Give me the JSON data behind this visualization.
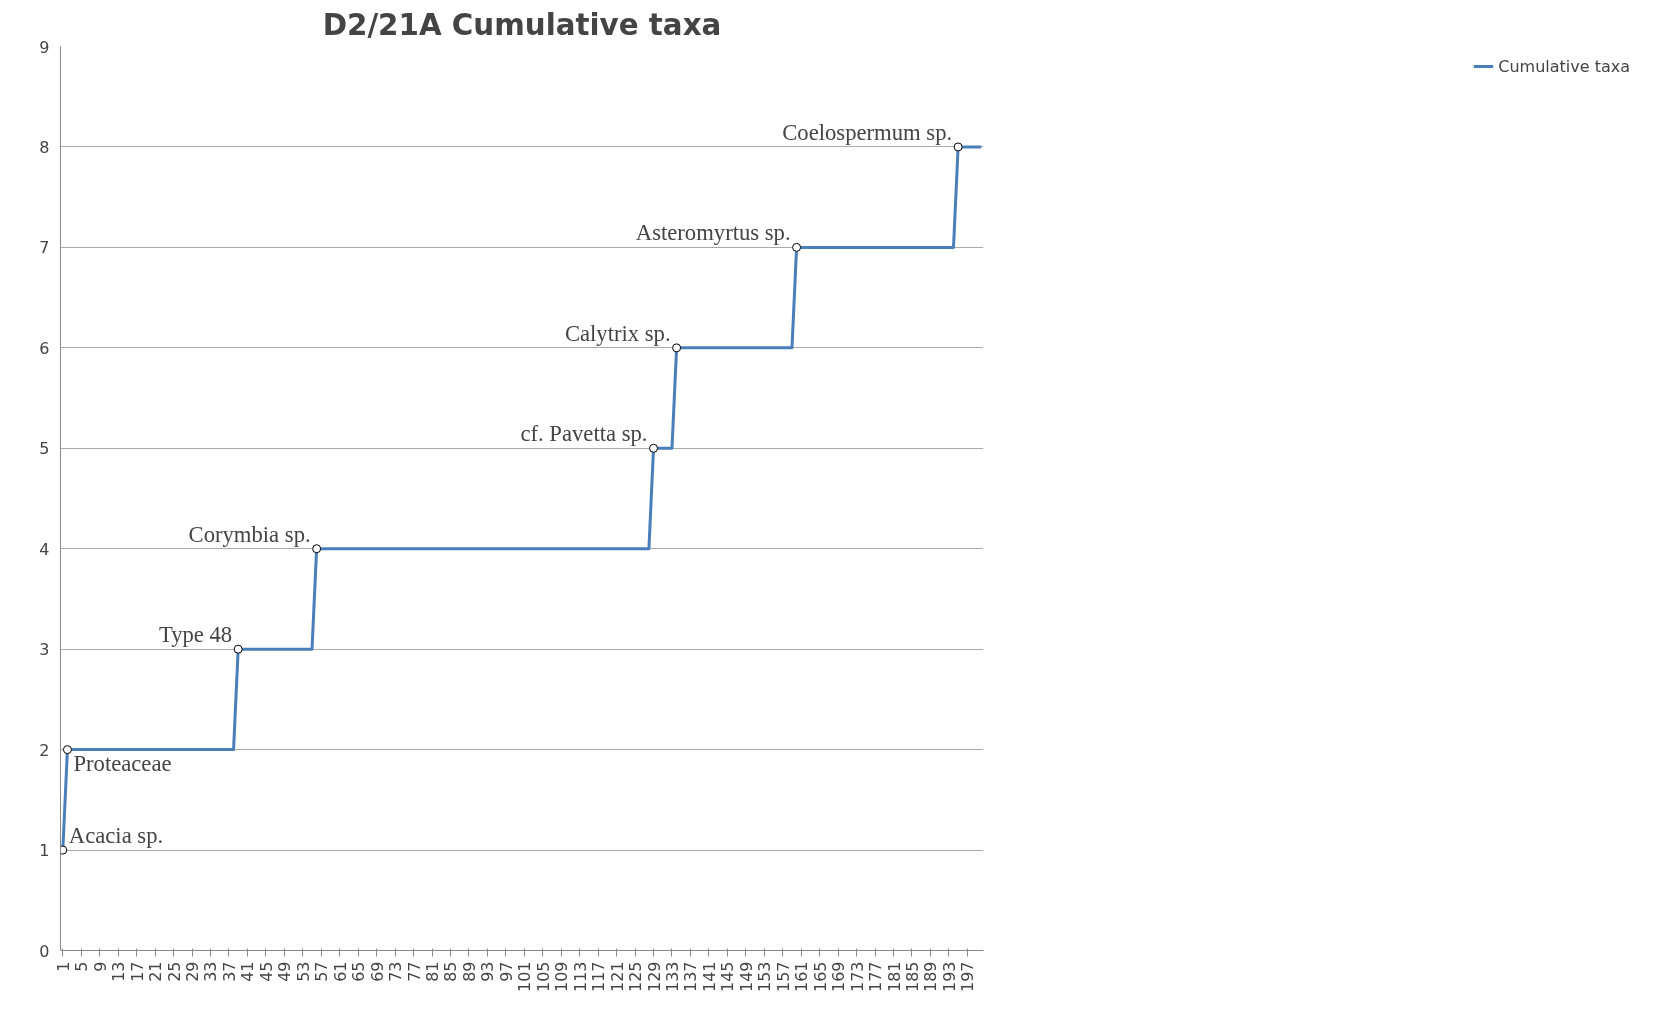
{
  "chart_data": {
    "type": "line",
    "title": "D2/21A Cumulative taxa",
    "xlim": [
      0.5,
      200.5
    ],
    "xticks": [
      1,
      5,
      9,
      13,
      17,
      21,
      25,
      29,
      33,
      37,
      41,
      45,
      49,
      53,
      57,
      61,
      65,
      69,
      73,
      77,
      81,
      85,
      89,
      93,
      97,
      101,
      105,
      109,
      113,
      117,
      121,
      125,
      129,
      133,
      137,
      141,
      145,
      149,
      153,
      157,
      161,
      165,
      169,
      173,
      177,
      181,
      185,
      189,
      193,
      197
    ],
    "ylim": [
      0,
      9
    ],
    "yticks": [
      0,
      1,
      2,
      3,
      4,
      5,
      6,
      7,
      8,
      9
    ],
    "grid": "y",
    "legend": "right",
    "series": [
      {
        "name": "Cumulative taxa",
        "color": "#4a7ebb",
        "x": [
          1,
          2,
          38,
          39,
          55,
          56,
          128,
          129,
          133,
          134,
          159,
          160,
          194,
          195,
          200
        ],
        "values": [
          1,
          2,
          2,
          3,
          3,
          4,
          4,
          5,
          5,
          6,
          6,
          7,
          7,
          8,
          8
        ]
      }
    ],
    "annotations": [
      {
        "text": "Acacia sp.",
        "x": 1,
        "y": 1
      },
      {
        "text": "Proteaceae",
        "x": 2,
        "y": 2
      },
      {
        "text": "Type 48",
        "x": 39,
        "y": 3
      },
      {
        "text": "Corymbia sp.",
        "x": 56,
        "y": 4
      },
      {
        "text": "cf. Pavetta sp.",
        "x": 129,
        "y": 5
      },
      {
        "text": "Calytrix sp.",
        "x": 134,
        "y": 6
      },
      {
        "text": "Asteromyrtus sp.",
        "x": 160,
        "y": 7
      },
      {
        "text": "Coelospermum sp.",
        "x": 195,
        "y": 8
      }
    ]
  }
}
